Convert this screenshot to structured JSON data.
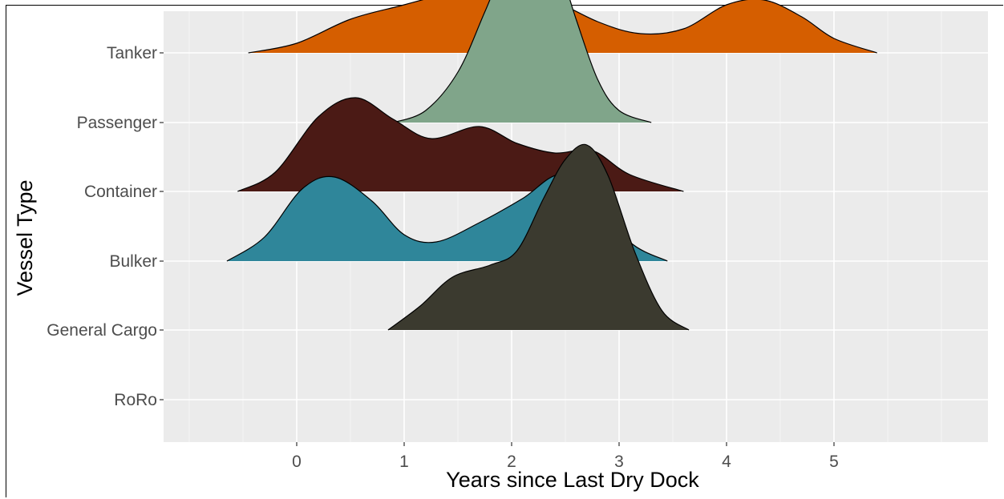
{
  "chart_data": {
    "type": "ridgeline-density",
    "title": "",
    "xlabel": "Years since Last Dry Dock",
    "ylabel": "Vessel Type",
    "xlim": [
      -1.0,
      6.7
    ],
    "x_ticks": [
      0,
      1,
      2,
      3,
      4,
      5
    ],
    "grid": true,
    "background": "#ebebeb",
    "categories": [
      "Tanker",
      "Passenger",
      "Container",
      "Bulker",
      "General Cargo",
      "RoRo"
    ],
    "series": [
      {
        "name": "Tanker",
        "color": "#d55e00",
        "x": [
          -0.45,
          0.0,
          0.5,
          1.0,
          1.5,
          1.9,
          2.3,
          2.8,
          3.2,
          3.6,
          4.0,
          4.35,
          4.7,
          5.0,
          5.4
        ],
        "density": [
          0.0,
          0.04,
          0.14,
          0.2,
          0.26,
          0.3,
          0.24,
          0.13,
          0.08,
          0.1,
          0.2,
          0.22,
          0.15,
          0.06,
          0.0
        ]
      },
      {
        "name": "Passenger",
        "color": "#80a58a",
        "x": [
          0.9,
          1.2,
          1.5,
          1.75,
          2.0,
          2.2,
          2.4,
          2.6,
          2.8,
          3.0,
          3.3
        ],
        "density": [
          0.0,
          0.05,
          0.21,
          0.46,
          0.72,
          0.81,
          0.7,
          0.43,
          0.18,
          0.05,
          0.0
        ]
      },
      {
        "name": "Container",
        "color": "#4b1a15",
        "x": [
          -0.55,
          -0.2,
          0.2,
          0.55,
          0.9,
          1.25,
          1.7,
          2.05,
          2.4,
          2.75,
          3.1,
          3.6
        ],
        "density": [
          0.0,
          0.08,
          0.31,
          0.39,
          0.3,
          0.22,
          0.27,
          0.2,
          0.16,
          0.17,
          0.07,
          0.0
        ]
      },
      {
        "name": "Bulker",
        "color": "#2f869a",
        "x": [
          -0.65,
          -0.3,
          0.05,
          0.35,
          0.7,
          1.0,
          1.3,
          1.7,
          2.1,
          2.45,
          2.8,
          3.1,
          3.45
        ],
        "density": [
          0.0,
          0.1,
          0.3,
          0.35,
          0.25,
          0.11,
          0.08,
          0.16,
          0.26,
          0.36,
          0.27,
          0.08,
          0.0
        ]
      },
      {
        "name": "General Cargo",
        "color": "#3b3a2f",
        "x": [
          0.85,
          1.15,
          1.45,
          1.8,
          2.05,
          2.3,
          2.5,
          2.7,
          2.9,
          3.15,
          3.4,
          3.65
        ],
        "density": [
          0.0,
          0.1,
          0.22,
          0.27,
          0.33,
          0.55,
          0.71,
          0.77,
          0.64,
          0.32,
          0.08,
          0.0
        ]
      },
      {
        "name": "RoRo",
        "color": "#cccccc",
        "x": [],
        "density": []
      }
    ]
  }
}
